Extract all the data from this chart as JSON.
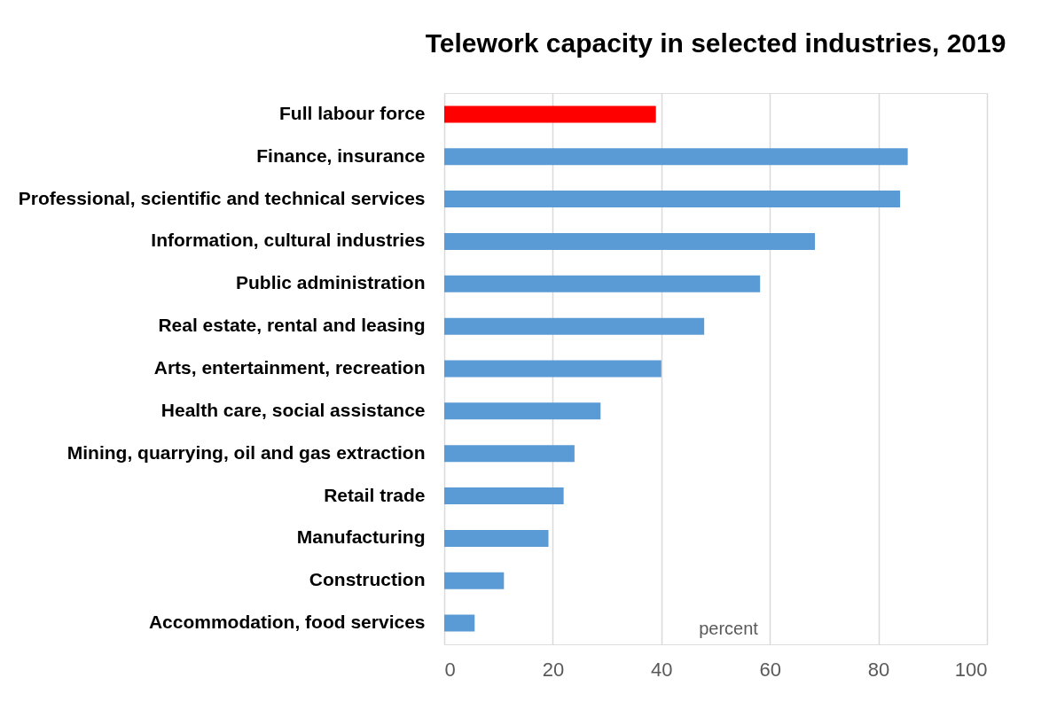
{
  "chart_data": {
    "type": "bar",
    "orientation": "horizontal",
    "title": "Telework capacity in selected industries, 2019",
    "xlabel": "percent",
    "categories": [
      "Full labour force",
      "Finance, insurance",
      "Professional, scientific and technical services",
      "Information, cultural industries",
      "Public administration",
      "Real estate, rental and leasing",
      "Arts, entertainment, recreation",
      "Health care, social assistance",
      "Mining, quarrying, oil and gas extraction",
      "Retail trade",
      "Manufacturing",
      "Construction",
      "Accommodation, food services"
    ],
    "values": [
      39.0,
      85.4,
      84.0,
      68.3,
      58.2,
      47.9,
      40.0,
      28.8,
      24.0,
      22.0,
      19.2,
      11.0,
      5.6
    ],
    "colors": [
      "#ff0000",
      "#5b9bd5",
      "#5b9bd5",
      "#5b9bd5",
      "#5b9bd5",
      "#5b9bd5",
      "#5b9bd5",
      "#5b9bd5",
      "#5b9bd5",
      "#5b9bd5",
      "#5b9bd5",
      "#5b9bd5",
      "#5b9bd5"
    ],
    "xlim": [
      0,
      100
    ],
    "xticks": [
      0,
      20,
      40,
      60,
      80,
      100
    ],
    "grid": "x"
  }
}
